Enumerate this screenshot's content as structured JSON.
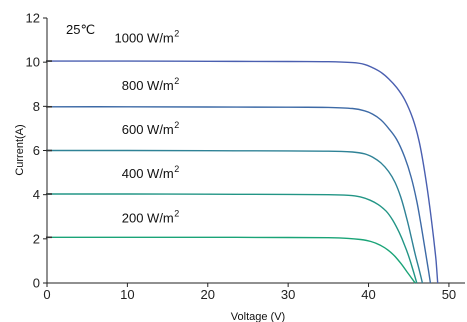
{
  "chart_data": {
    "type": "line",
    "annotation": "25℃",
    "xlabel": "Voltage  (V)",
    "ylabel": "Current(A)",
    "xlim": [
      0,
      52
    ],
    "ylim": [
      0,
      12
    ],
    "xticks": [
      0,
      10,
      20,
      30,
      40,
      50
    ],
    "yticks": [
      0,
      2,
      4,
      6,
      8,
      10,
      12
    ],
    "grid": false,
    "legend": "none",
    "series": [
      {
        "name": "1000 W/m2",
        "label_main": "1000 W/m",
        "label_sup": "2",
        "label_at": [
          8.4,
          10.9
        ],
        "color": "#4a5fb0",
        "points": [
          [
            0,
            10.05
          ],
          [
            5,
            10.05
          ],
          [
            10,
            10.05
          ],
          [
            20,
            10.04
          ],
          [
            30,
            10.03
          ],
          [
            35,
            10.02
          ],
          [
            38,
            9.98
          ],
          [
            39.5,
            9.9
          ],
          [
            40.5,
            9.75
          ],
          [
            41.5,
            9.55
          ],
          [
            42.5,
            9.25
          ],
          [
            43.5,
            8.85
          ],
          [
            44.5,
            8.3
          ],
          [
            45.5,
            7.45
          ],
          [
            46.3,
            6.4
          ],
          [
            47,
            5.0
          ],
          [
            47.6,
            3.5
          ],
          [
            48.1,
            2.0
          ],
          [
            48.4,
            1.0
          ],
          [
            48.6,
            0.0
          ]
        ]
      },
      {
        "name": "800 W/m2",
        "label_main": "800 W/m",
        "label_sup": "2",
        "label_at": [
          9.3,
          8.75
        ],
        "color": "#3d6aa6",
        "points": [
          [
            0,
            7.98
          ],
          [
            10,
            7.98
          ],
          [
            20,
            7.97
          ],
          [
            30,
            7.96
          ],
          [
            35,
            7.95
          ],
          [
            38,
            7.9
          ],
          [
            39.5,
            7.8
          ],
          [
            40.5,
            7.65
          ],
          [
            41.5,
            7.4
          ],
          [
            42.5,
            7.0
          ],
          [
            43.5,
            6.5
          ],
          [
            44.5,
            5.7
          ],
          [
            45.3,
            4.8
          ],
          [
            46,
            3.7
          ],
          [
            46.5,
            2.7
          ],
          [
            47,
            1.6
          ],
          [
            47.4,
            0.7
          ],
          [
            47.7,
            0.0
          ]
        ]
      },
      {
        "name": "600 W/m2",
        "label_main": "600 W/m",
        "label_sup": "2",
        "label_at": [
          9.3,
          6.75
        ],
        "color": "#2f8296",
        "points": [
          [
            0,
            6.0
          ],
          [
            10,
            6.0
          ],
          [
            20,
            5.99
          ],
          [
            30,
            5.98
          ],
          [
            35,
            5.97
          ],
          [
            38,
            5.93
          ],
          [
            39.5,
            5.85
          ],
          [
            40.5,
            5.7
          ],
          [
            41.5,
            5.45
          ],
          [
            42.5,
            5.05
          ],
          [
            43.3,
            4.55
          ],
          [
            44,
            3.9
          ],
          [
            44.7,
            3.0
          ],
          [
            45.3,
            2.1
          ],
          [
            45.8,
            1.3
          ],
          [
            46.3,
            0.6
          ],
          [
            46.7,
            0.0
          ]
        ]
      },
      {
        "name": "400 W/m2",
        "label_main": "400 W/m",
        "label_sup": "2",
        "label_at": [
          9.3,
          4.75
        ],
        "color": "#229585",
        "points": [
          [
            0,
            4.03
          ],
          [
            10,
            4.03
          ],
          [
            20,
            4.02
          ],
          [
            30,
            4.01
          ],
          [
            35,
            4.0
          ],
          [
            37.5,
            3.97
          ],
          [
            39,
            3.9
          ],
          [
            40.2,
            3.75
          ],
          [
            41.2,
            3.55
          ],
          [
            42.2,
            3.25
          ],
          [
            43,
            2.85
          ],
          [
            43.8,
            2.3
          ],
          [
            44.5,
            1.7
          ],
          [
            45.1,
            1.1
          ],
          [
            45.6,
            0.5
          ],
          [
            46,
            0.0
          ]
        ]
      },
      {
        "name": "200 W/m2",
        "label_main": "200 W/m",
        "label_sup": "2",
        "label_at": [
          9.3,
          2.75
        ],
        "color": "#1aa477",
        "points": [
          [
            0,
            2.07
          ],
          [
            10,
            2.07
          ],
          [
            20,
            2.07
          ],
          [
            30,
            2.06
          ],
          [
            35,
            2.05
          ],
          [
            37.5,
            2.02
          ],
          [
            39,
            1.97
          ],
          [
            40.3,
            1.88
          ],
          [
            41.4,
            1.72
          ],
          [
            42.4,
            1.5
          ],
          [
            43.3,
            1.2
          ],
          [
            44.1,
            0.85
          ],
          [
            44.8,
            0.5
          ],
          [
            45.4,
            0.2
          ],
          [
            45.8,
            0.0
          ]
        ]
      }
    ]
  }
}
